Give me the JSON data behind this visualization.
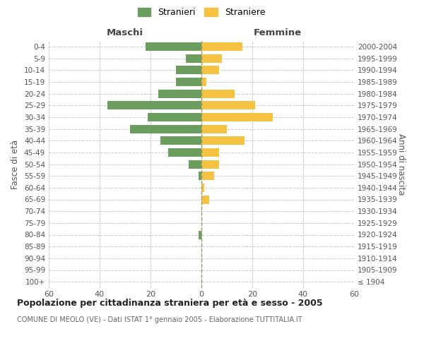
{
  "age_groups": [
    "100+",
    "95-99",
    "90-94",
    "85-89",
    "80-84",
    "75-79",
    "70-74",
    "65-69",
    "60-64",
    "55-59",
    "50-54",
    "45-49",
    "40-44",
    "35-39",
    "30-34",
    "25-29",
    "20-24",
    "15-19",
    "10-14",
    "5-9",
    "0-4"
  ],
  "birth_years": [
    "≤ 1904",
    "1905-1909",
    "1910-1914",
    "1915-1919",
    "1920-1924",
    "1925-1929",
    "1930-1934",
    "1935-1939",
    "1940-1944",
    "1945-1949",
    "1950-1954",
    "1955-1959",
    "1960-1964",
    "1965-1969",
    "1970-1974",
    "1975-1979",
    "1980-1984",
    "1985-1989",
    "1990-1994",
    "1995-1999",
    "2000-2004"
  ],
  "maschi": [
    0,
    0,
    0,
    0,
    1,
    0,
    0,
    0,
    0,
    1,
    5,
    13,
    16,
    28,
    21,
    37,
    17,
    10,
    10,
    6,
    22
  ],
  "femmine": [
    0,
    0,
    0,
    0,
    0,
    0,
    0,
    3,
    1,
    5,
    7,
    7,
    17,
    10,
    28,
    21,
    13,
    2,
    7,
    8,
    16
  ],
  "maschi_color": "#6b9e5e",
  "femmine_color": "#f5c242",
  "title": "Popolazione per cittadinanza straniera per età e sesso - 2005",
  "subtitle": "COMUNE DI MEOLO (VE) - Dati ISTAT 1° gennaio 2005 - Elaborazione TUTTITALIA.IT",
  "xlabel_left": "Maschi",
  "xlabel_right": "Femmine",
  "ylabel_left": "Fasce di età",
  "ylabel_right": "Anni di nascita",
  "xlim": 60,
  "legend_stranieri": "Stranieri",
  "legend_straniere": "Straniere",
  "background_color": "#ffffff",
  "grid_color": "#cccccc"
}
